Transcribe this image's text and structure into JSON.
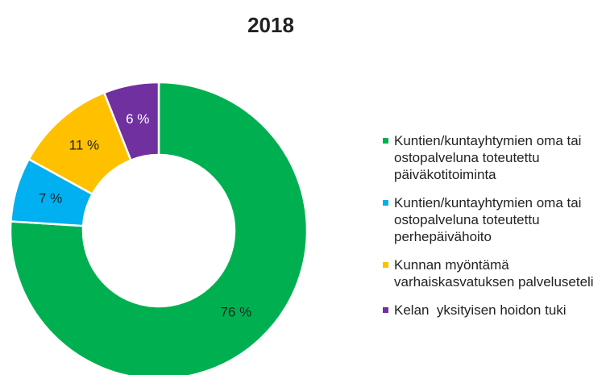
{
  "chart_data": {
    "type": "donut",
    "title": "2018",
    "categories": [
      "Kuntien/kuntayhtymien oma tai ostopalveluna toteutettu päiväkotitoiminta",
      "Kuntien/kuntayhtymien oma tai ostopalveluna toteutettu perhepäivähoito",
      "Kunnan myöntämä varhaiskasvatuksen palveluseteli",
      "Kelan  yksityisen hoidon tuki"
    ],
    "values": [
      76,
      7,
      11,
      6
    ],
    "value_labels": [
      "76 %",
      "7 %",
      "11 %",
      "6 %"
    ],
    "colors": [
      "#00b050",
      "#00b0f0",
      "#ffc000",
      "#7030a0"
    ],
    "legend": "right"
  }
}
